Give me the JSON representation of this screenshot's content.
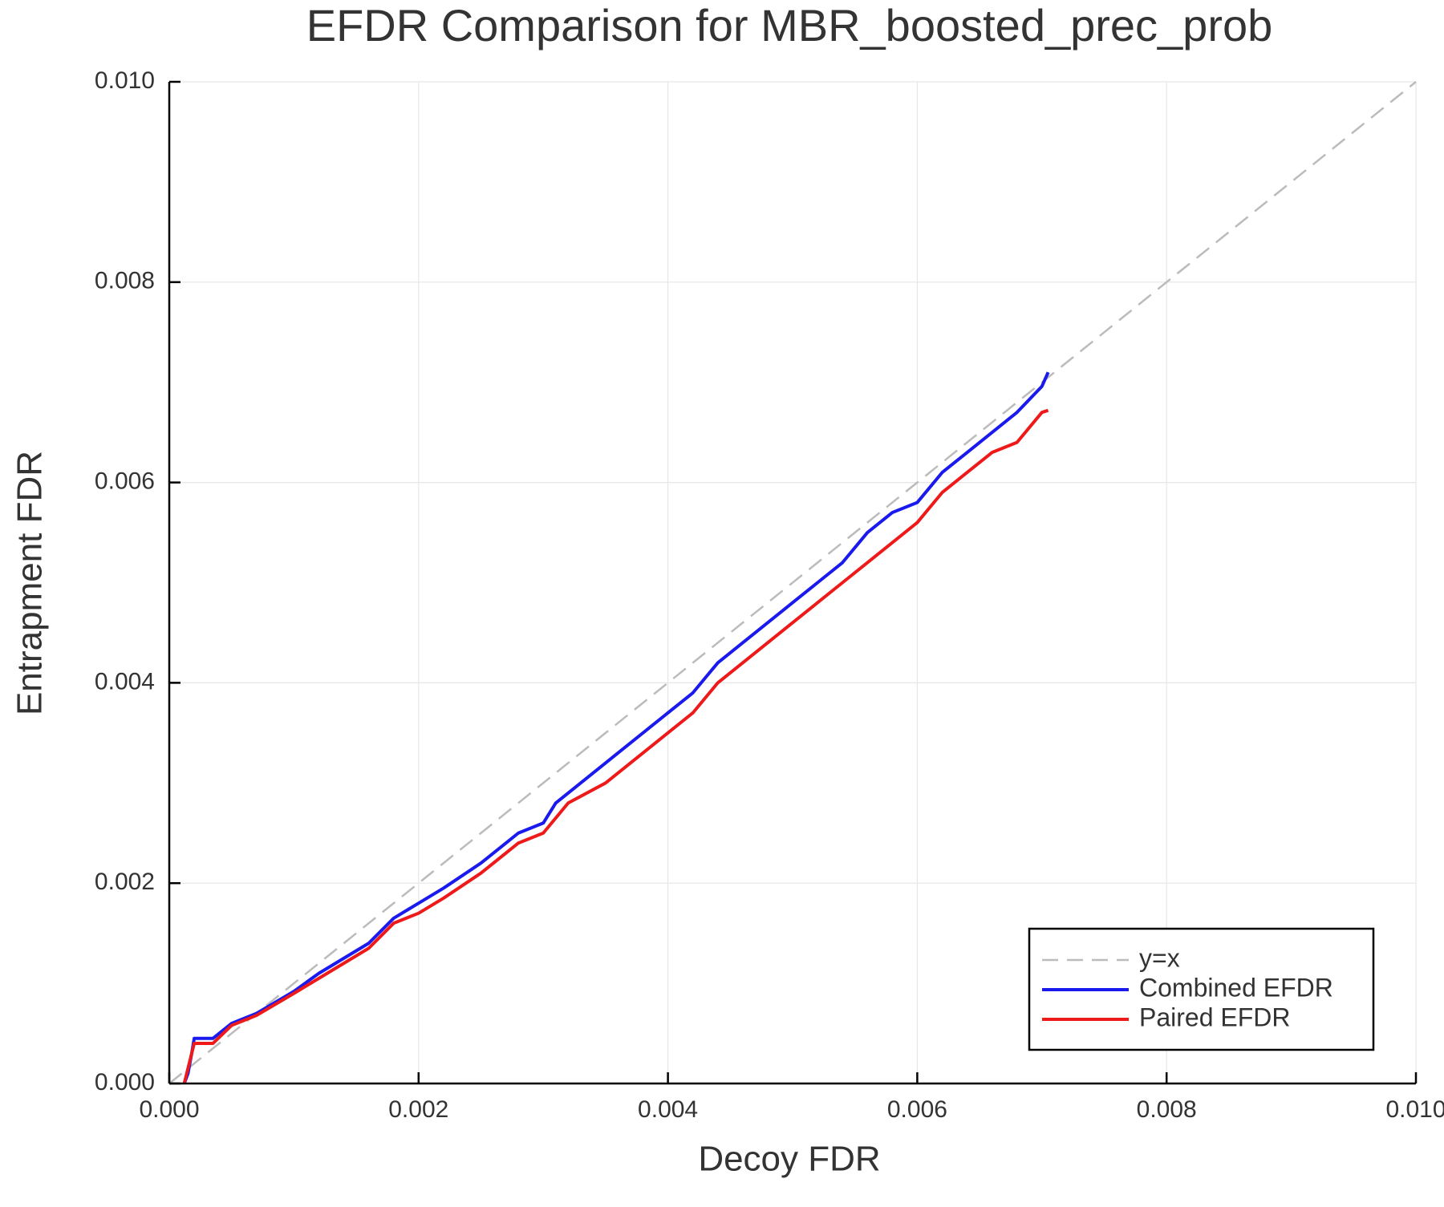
{
  "chart_data": {
    "type": "line",
    "title": "EFDR Comparison for MBR_boosted_prec_prob",
    "x_label": "Decoy FDR",
    "y_label": "Entrapment FDR",
    "xlim": [
      0,
      0.01
    ],
    "ylim": [
      0,
      0.01
    ],
    "xticks": [
      {
        "value": 0,
        "label": "0.000"
      },
      {
        "value": 0.002,
        "label": "0.002"
      },
      {
        "value": 0.004,
        "label": "0.004"
      },
      {
        "value": 0.006,
        "label": "0.006"
      },
      {
        "value": 0.008,
        "label": "0.008"
      },
      {
        "value": 0.01,
        "label": "0.010"
      }
    ],
    "yticks": [
      {
        "value": 0,
        "label": "0.000"
      },
      {
        "value": 0.002,
        "label": "0.002"
      },
      {
        "value": 0.004,
        "label": "0.004"
      },
      {
        "value": 0.006,
        "label": "0.006"
      },
      {
        "value": 0.008,
        "label": "0.008"
      },
      {
        "value": 0.01,
        "label": "0.010"
      }
    ],
    "grid": true,
    "legend": "bottom right",
    "series": [
      {
        "name": "y=x",
        "color": "#bbbbbb",
        "dashed": true,
        "x": [
          0,
          0.01
        ],
        "values": [
          0,
          0.01
        ]
      },
      {
        "name": "Combined EFDR",
        "color": "#1a1aee",
        "x": [
          0.00012,
          0.00015,
          0.00018,
          0.0002,
          0.00035,
          0.0005,
          0.0007,
          0.001,
          0.0012,
          0.0014,
          0.0016,
          0.0018,
          0.002,
          0.0022,
          0.0025,
          0.0028,
          0.003,
          0.0031,
          0.0033,
          0.0035,
          0.0037,
          0.004,
          0.0042,
          0.0044,
          0.0046,
          0.0048,
          0.005,
          0.0052,
          0.0054,
          0.0056,
          0.0058,
          0.006,
          0.0062,
          0.0064,
          0.0066,
          0.0068,
          0.007,
          0.00705
        ],
        "values": [
          0,
          0.0001,
          0.0003,
          0.00045,
          0.00045,
          0.0006,
          0.0007,
          0.00092,
          0.0011,
          0.00125,
          0.0014,
          0.00165,
          0.0018,
          0.00195,
          0.0022,
          0.0025,
          0.0026,
          0.0028,
          0.003,
          0.0032,
          0.0034,
          0.0037,
          0.0039,
          0.0042,
          0.0044,
          0.0046,
          0.0048,
          0.005,
          0.0052,
          0.0055,
          0.0057,
          0.0058,
          0.0061,
          0.0063,
          0.0065,
          0.0067,
          0.00696,
          0.0071
        ]
      },
      {
        "name": "Paired EFDR",
        "color": "#ee1a1a",
        "x": [
          0.00012,
          0.00018,
          0.0002,
          0.00035,
          0.0005,
          0.0007,
          0.001,
          0.0012,
          0.0014,
          0.0016,
          0.0018,
          0.002,
          0.0022,
          0.0025,
          0.0028,
          0.003,
          0.0032,
          0.0035,
          0.0037,
          0.004,
          0.0042,
          0.0044,
          0.0046,
          0.0048,
          0.005,
          0.0052,
          0.0054,
          0.0056,
          0.0058,
          0.006,
          0.0062,
          0.0064,
          0.0066,
          0.0068,
          0.007,
          0.00705
        ],
        "values": [
          0,
          0.0003,
          0.0004,
          0.0004,
          0.00058,
          0.00068,
          0.0009,
          0.00105,
          0.0012,
          0.00135,
          0.0016,
          0.0017,
          0.00185,
          0.0021,
          0.0024,
          0.0025,
          0.0028,
          0.003,
          0.0032,
          0.0035,
          0.0037,
          0.004,
          0.0042,
          0.0044,
          0.0046,
          0.0048,
          0.005,
          0.0052,
          0.0054,
          0.0056,
          0.0059,
          0.0061,
          0.0063,
          0.0064,
          0.0067,
          0.00672
        ]
      }
    ]
  }
}
